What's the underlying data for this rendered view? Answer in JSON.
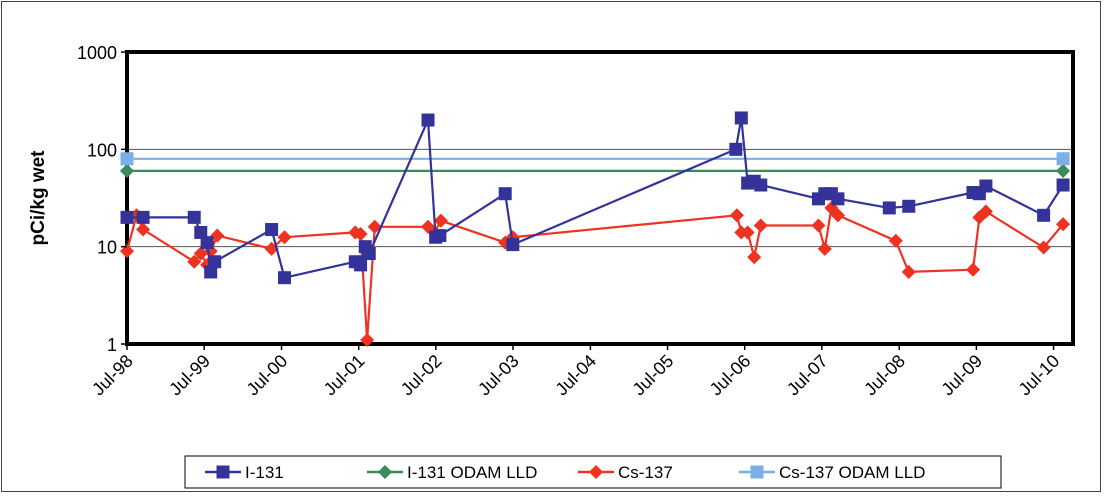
{
  "chart_data": {
    "type": "line",
    "title": "",
    "xlabel": "",
    "ylabel": "pCi/kg wet",
    "yscale": "log",
    "ylim": [
      1,
      1000
    ],
    "xlim": [
      "1998-07-01",
      "2010-10-01"
    ],
    "y_ticks": [
      "1",
      "10",
      "100",
      "1000"
    ],
    "y_tick_values": [
      1,
      10,
      100,
      1000
    ],
    "x_ticks": [
      "Jul-98",
      "Jul-99",
      "Jul-00",
      "Jul-01",
      "Jul-02",
      "Jul-03",
      "Jul-04",
      "Jul-05",
      "Jul-06",
      "Jul-07",
      "Jul-08",
      "Jul-09",
      "Jul-10"
    ],
    "x_tick_dates": [
      "1998-07-01",
      "1999-07-01",
      "2000-07-01",
      "2001-07-01",
      "2002-07-01",
      "2003-07-01",
      "2004-07-01",
      "2005-07-01",
      "2006-07-01",
      "2007-07-01",
      "2008-07-01",
      "2009-07-01",
      "2010-07-01"
    ],
    "grid": "horizontal-major",
    "legend_position": "bottom",
    "series": [
      {
        "name": "I-131",
        "color": "#33339a",
        "marker": "square",
        "x": [
          "1998-07-01",
          "1998-09-15",
          "1999-05-15",
          "1999-06-15",
          "1999-07-15",
          "1999-08-01",
          "1999-08-20",
          "2000-05-15",
          "2000-07-15",
          "2001-06-15",
          "2001-07-10",
          "2001-08-01",
          "2001-08-20",
          "2002-05-25",
          "2002-06-30",
          "2002-07-20",
          "2003-05-25",
          "2003-06-30",
          "2006-05-20",
          "2006-06-15",
          "2006-07-15",
          "2006-08-15",
          "2006-09-15",
          "2007-06-15",
          "2007-07-15",
          "2007-08-15",
          "2007-09-15",
          "2008-05-15",
          "2008-08-15",
          "2009-06-15",
          "2009-07-15",
          "2009-08-15",
          "2010-05-15",
          "2010-08-15"
        ],
        "y": [
          20,
          20,
          20,
          14,
          11,
          5.5,
          7,
          15,
          4.8,
          7,
          6.5,
          10,
          8.5,
          200,
          12.5,
          13,
          35,
          10.5,
          100,
          210,
          45,
          47,
          43,
          31,
          35,
          35,
          31,
          25,
          26,
          36,
          35,
          42,
          21,
          43
        ]
      },
      {
        "name": "I-131 ODAM LLD",
        "color": "#3a8a5c",
        "marker": "diamond",
        "x": [
          "1998-07-01",
          "2010-08-15"
        ],
        "y": [
          60,
          60
        ]
      },
      {
        "name": "Cs-137",
        "color": "#ee3322",
        "marker": "diamond",
        "x": [
          "1998-07-01",
          "1998-08-15",
          "1998-09-15",
          "1999-05-15",
          "1999-06-15",
          "1999-07-15",
          "1999-08-01",
          "1999-09-01",
          "2000-05-15",
          "2000-07-15",
          "2001-06-15",
          "2001-07-10",
          "2001-08-10",
          "2001-09-15",
          "2002-05-25",
          "2002-06-25",
          "2002-07-25",
          "2003-05-25",
          "2003-06-30",
          "2006-05-25",
          "2006-06-15",
          "2006-07-15",
          "2006-08-15",
          "2006-09-15",
          "2007-06-15",
          "2007-07-15",
          "2007-08-15",
          "2007-09-15",
          "2008-06-15",
          "2008-08-15",
          "2009-06-15",
          "2009-07-15",
          "2009-08-15",
          "2010-05-15",
          "2010-08-15"
        ],
        "y": [
          9,
          21,
          15,
          7,
          8.5,
          6.5,
          9,
          13,
          9.5,
          12.5,
          14,
          13.5,
          1.1,
          16,
          16,
          14,
          18.5,
          11,
          12.5,
          21,
          14,
          14,
          7.8,
          16.5,
          16.5,
          9.5,
          25,
          21,
          11.5,
          5.5,
          5.8,
          20,
          23,
          9.8,
          17
        ]
      },
      {
        "name": "Cs-137 ODAM LLD",
        "color": "#7ab0e6",
        "marker": "square",
        "x": [
          "1998-07-01",
          "2010-08-15"
        ],
        "y": [
          80,
          80
        ]
      }
    ]
  }
}
